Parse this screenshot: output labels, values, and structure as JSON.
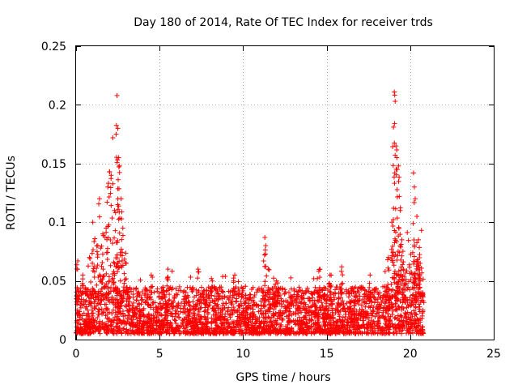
{
  "chart_data": {
    "type": "scatter",
    "title": "Day 180 of 2014, Rate Of TEC Index for receiver trds",
    "xlabel": "GPS time / hours",
    "ylabel": "ROTI / TECUs",
    "xlim": [
      0,
      25
    ],
    "ylim": [
      0,
      0.25
    ],
    "xticks": [
      0,
      5,
      10,
      15,
      20,
      25
    ],
    "yticks": [
      0,
      0.05,
      0.1,
      0.15,
      0.2,
      0.25
    ],
    "xtick_labels": [
      "0",
      "5",
      "10",
      "15",
      "20",
      "25"
    ],
    "ytick_labels": [
      "0",
      "0.05",
      "0.1",
      "0.15",
      "0.2",
      "0.25"
    ],
    "grid": true,
    "marker": "+",
    "series": [
      {
        "name": "ROTI",
        "color": "#ff0000",
        "baseline_range": [
          0.005,
          0.045
        ],
        "x_range": [
          0.0,
          20.8
        ],
        "highlights": [
          {
            "x": 0.1,
            "y": 0.067
          },
          {
            "x": 0.4,
            "y": 0.055
          },
          {
            "x": 0.8,
            "y": 0.07
          },
          {
            "x": 1.0,
            "y": 0.1
          },
          {
            "x": 1.3,
            "y": 0.08
          },
          {
            "x": 1.4,
            "y": 0.12
          },
          {
            "x": 1.6,
            "y": 0.09
          },
          {
            "x": 1.8,
            "y": 0.095
          },
          {
            "x": 1.9,
            "y": 0.13
          },
          {
            "x": 2.0,
            "y": 0.143
          },
          {
            "x": 2.1,
            "y": 0.14
          },
          {
            "x": 2.2,
            "y": 0.172
          },
          {
            "x": 2.3,
            "y": 0.11
          },
          {
            "x": 2.4,
            "y": 0.175
          },
          {
            "x": 2.45,
            "y": 0.208
          },
          {
            "x": 2.5,
            "y": 0.18
          },
          {
            "x": 2.55,
            "y": 0.155
          },
          {
            "x": 2.6,
            "y": 0.148
          },
          {
            "x": 2.7,
            "y": 0.12
          },
          {
            "x": 2.8,
            "y": 0.095
          },
          {
            "x": 3.0,
            "y": 0.065
          },
          {
            "x": 4.5,
            "y": 0.055
          },
          {
            "x": 5.5,
            "y": 0.06
          },
          {
            "x": 7.3,
            "y": 0.06
          },
          {
            "x": 8.1,
            "y": 0.052
          },
          {
            "x": 9.5,
            "y": 0.055
          },
          {
            "x": 11.3,
            "y": 0.087
          },
          {
            "x": 11.35,
            "y": 0.08
          },
          {
            "x": 11.5,
            "y": 0.06
          },
          {
            "x": 12.0,
            "y": 0.05
          },
          {
            "x": 14.6,
            "y": 0.06
          },
          {
            "x": 15.2,
            "y": 0.055
          },
          {
            "x": 15.9,
            "y": 0.062
          },
          {
            "x": 17.6,
            "y": 0.055
          },
          {
            "x": 18.5,
            "y": 0.058
          },
          {
            "x": 18.7,
            "y": 0.07
          },
          {
            "x": 18.9,
            "y": 0.1
          },
          {
            "x": 19.0,
            "y": 0.181
          },
          {
            "x": 19.05,
            "y": 0.211
          },
          {
            "x": 19.1,
            "y": 0.203
          },
          {
            "x": 19.15,
            "y": 0.165
          },
          {
            "x": 19.2,
            "y": 0.155
          },
          {
            "x": 19.3,
            "y": 0.148
          },
          {
            "x": 19.35,
            "y": 0.122
          },
          {
            "x": 19.4,
            "y": 0.11
          },
          {
            "x": 19.5,
            "y": 0.085
          },
          {
            "x": 19.6,
            "y": 0.06
          },
          {
            "x": 20.2,
            "y": 0.142
          },
          {
            "x": 20.25,
            "y": 0.13
          },
          {
            "x": 20.3,
            "y": 0.12
          },
          {
            "x": 20.4,
            "y": 0.105
          },
          {
            "x": 20.5,
            "y": 0.085
          },
          {
            "x": 20.6,
            "y": 0.065
          },
          {
            "x": 20.75,
            "y": 0.04
          }
        ]
      }
    ]
  }
}
